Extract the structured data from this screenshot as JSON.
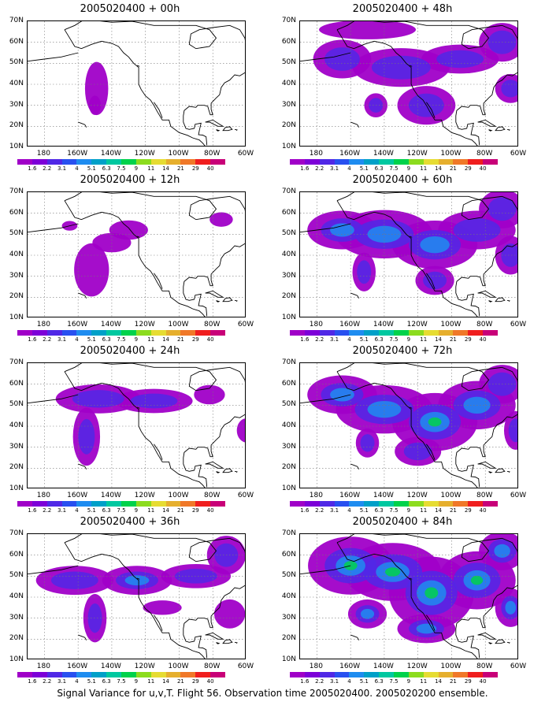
{
  "panels": [
    {
      "title": "2005020400 + 00h",
      "intensity": 0.15,
      "blobs": [
        [
          -149,
          38,
          6,
          11,
          0.9
        ],
        [
          -150,
          30,
          3,
          4,
          0.6
        ]
      ]
    },
    {
      "title": "2005020400 + 12h",
      "intensity": 0.35,
      "blobs": [
        [
          -152,
          33,
          9,
          11,
          0.7
        ],
        [
          -140,
          46,
          10,
          4,
          0.7
        ],
        [
          -130,
          52,
          10,
          4,
          0.6
        ],
        [
          -165,
          54,
          4,
          2,
          0.4
        ],
        [
          -75,
          57,
          6,
          3,
          0.4
        ]
      ]
    },
    {
      "title": "2005020400 + 24h",
      "intensity": 0.45,
      "blobs": [
        [
          -155,
          35,
          7,
          12,
          0.8
        ],
        [
          -148,
          53,
          22,
          6,
          0.7
        ],
        [
          -115,
          52,
          20,
          5,
          0.7
        ],
        [
          -60,
          38,
          5,
          5,
          0.6
        ],
        [
          -82,
          55,
          8,
          4,
          0.6
        ]
      ]
    },
    {
      "title": "2005020400 + 36h",
      "intensity": 0.6,
      "blobs": [
        [
          -162,
          48,
          20,
          6,
          0.8
        ],
        [
          -125,
          48,
          18,
          6,
          1.0
        ],
        [
          -90,
          50,
          18,
          5,
          0.8
        ],
        [
          -150,
          30,
          6,
          10,
          0.7
        ],
        [
          -72,
          60,
          10,
          8,
          0.7
        ],
        [
          -110,
          35,
          10,
          3,
          0.5
        ],
        [
          -70,
          32,
          8,
          6,
          0.6
        ]
      ]
    },
    {
      "title": "2005020400 + 48h",
      "intensity": 0.7,
      "blobs": [
        [
          -165,
          52,
          15,
          8,
          0.8
        ],
        [
          -130,
          48,
          25,
          8,
          0.8
        ],
        [
          -95,
          52,
          20,
          6,
          0.7
        ],
        [
          -145,
          30,
          6,
          5,
          0.6
        ],
        [
          -115,
          30,
          15,
          8,
          0.8
        ],
        [
          -70,
          60,
          12,
          8,
          0.7
        ],
        [
          -65,
          38,
          8,
          6,
          0.7
        ],
        [
          -150,
          66,
          25,
          4,
          0.5
        ]
      ]
    },
    {
      "title": "2005020400 + 60h",
      "intensity": 0.75,
      "blobs": [
        [
          -165,
          52,
          18,
          8,
          0.8
        ],
        [
          -140,
          50,
          25,
          10,
          0.8
        ],
        [
          -110,
          45,
          22,
          10,
          0.9
        ],
        [
          -85,
          52,
          20,
          8,
          0.7
        ],
        [
          -152,
          32,
          6,
          8,
          0.6
        ],
        [
          -110,
          28,
          10,
          6,
          0.7
        ],
        [
          -70,
          62,
          12,
          8,
          0.7
        ],
        [
          -65,
          40,
          8,
          8,
          0.7
        ]
      ]
    },
    {
      "title": "2005020400 + 72h",
      "intensity": 0.85,
      "blobs": [
        [
          -165,
          55,
          18,
          8,
          0.9
        ],
        [
          -140,
          48,
          25,
          10,
          0.9
        ],
        [
          -110,
          42,
          22,
          12,
          1.0
        ],
        [
          -85,
          50,
          20,
          10,
          0.8
        ],
        [
          -150,
          32,
          6,
          6,
          0.6
        ],
        [
          -120,
          28,
          12,
          6,
          0.7
        ],
        [
          -70,
          60,
          12,
          8,
          0.7
        ],
        [
          -62,
          38,
          6,
          8,
          0.6
        ]
      ]
    },
    {
      "title": "2005020400 + 84h",
      "intensity": 1.0,
      "blobs": [
        [
          -160,
          55,
          22,
          12,
          1.0
        ],
        [
          -135,
          52,
          25,
          12,
          1.0
        ],
        [
          -112,
          42,
          22,
          15,
          1.3
        ],
        [
          -85,
          48,
          20,
          12,
          1.0
        ],
        [
          -150,
          32,
          10,
          6,
          0.8
        ],
        [
          -115,
          25,
          15,
          6,
          0.8
        ],
        [
          -70,
          62,
          12,
          8,
          0.8
        ],
        [
          -65,
          35,
          8,
          8,
          0.7
        ]
      ]
    }
  ],
  "axes": {
    "lat_labels": [
      "70N",
      "60N",
      "50N",
      "40N",
      "30N",
      "20N",
      "10N"
    ],
    "lon_labels": [
      "180",
      "160W",
      "140W",
      "120W",
      "100W",
      "80W",
      "60W"
    ],
    "lon_min": -190,
    "lon_max": -60,
    "lat_min": 10,
    "lat_max": 70
  },
  "colorbar": {
    "labels": [
      "1.6",
      "2.2",
      "3.1",
      "4",
      "5.1",
      "6.3",
      "7.5",
      "9",
      "11",
      "14",
      "21",
      "29",
      "40"
    ],
    "colors": [
      "#a000c8",
      "#7d00d8",
      "#5028e6",
      "#2850f0",
      "#1e8cf0",
      "#00a0c8",
      "#00c8a0",
      "#00d24b",
      "#8cdc1e",
      "#e6dc32",
      "#e6af2d",
      "#f07828",
      "#f01e1e",
      "#c80078"
    ]
  },
  "footer": "Signal Variance for u,v,T. Flight 56. Observation time 2005020400. 2005020200 ensemble."
}
